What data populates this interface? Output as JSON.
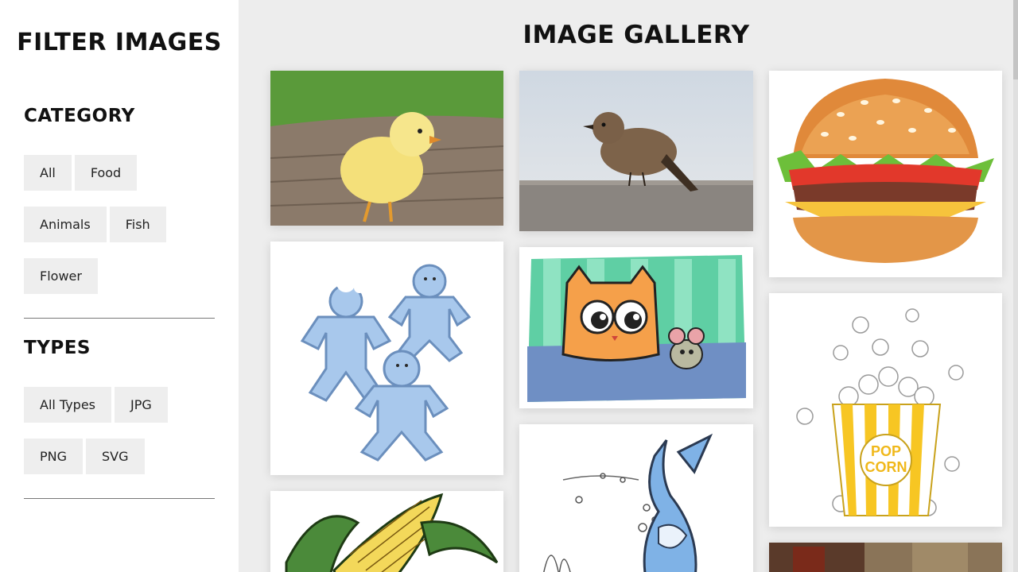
{
  "sidebar": {
    "title": "FILTER IMAGES",
    "category": {
      "heading": "CATEGORY",
      "chips": [
        "All",
        "Food",
        "Animals",
        "Fish",
        "Flower"
      ]
    },
    "types": {
      "heading": "TYPES",
      "chips": [
        "All Types",
        "JPG",
        "PNG",
        "SVG"
      ]
    }
  },
  "gallery": {
    "title": "IMAGE GALLERY",
    "images": [
      {
        "subject": "yellow-chick"
      },
      {
        "subject": "gingerbread-men"
      },
      {
        "subject": "corn"
      },
      {
        "subject": "brown-bird"
      },
      {
        "subject": "cat-and-mouse"
      },
      {
        "subject": "cartoon-shark"
      },
      {
        "subject": "hamburger"
      },
      {
        "subject": "popcorn"
      },
      {
        "subject": "drink"
      }
    ]
  },
  "colors": {
    "sidebar_bg": "#ffffff",
    "main_bg": "#ededed",
    "chip_bg": "#eeeeee"
  }
}
